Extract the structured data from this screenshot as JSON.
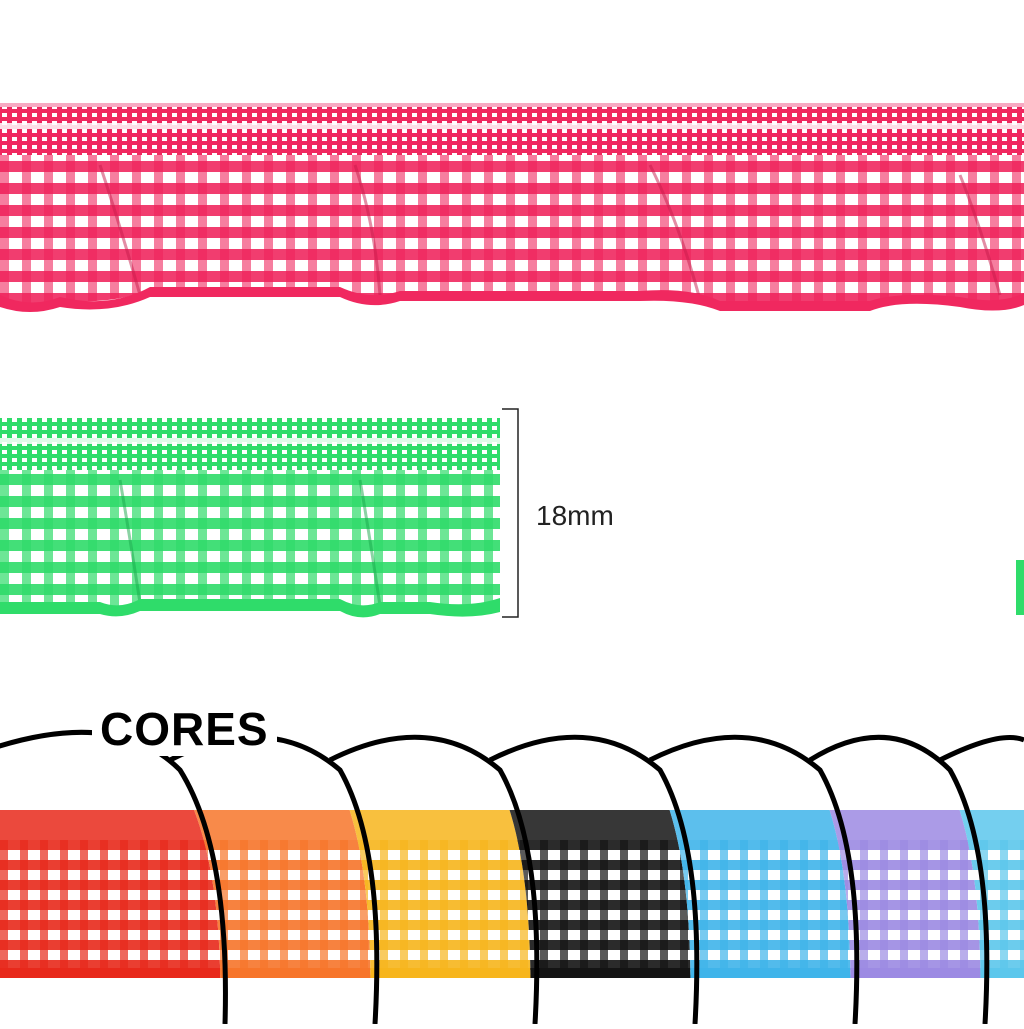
{
  "measurement": {
    "label": "18mm"
  },
  "colors_section": {
    "title": "CORES"
  },
  "ribbons": {
    "pink": "#f0285f",
    "green": "#2fdc6a"
  },
  "swatch_colors": [
    "#e8291b",
    "#f7752a",
    "#f7b51c",
    "#141414",
    "#3fb4ea",
    "#9c8ae3",
    "#5cc7ec"
  ]
}
